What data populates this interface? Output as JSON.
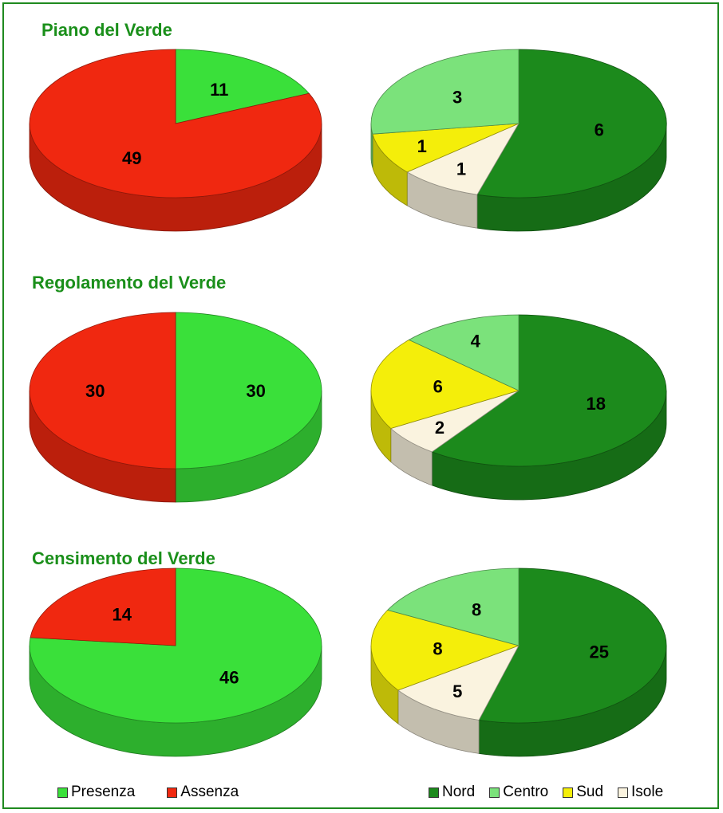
{
  "colors": {
    "presenza": "#3ae03a",
    "assenza": "#f02810",
    "nord": "#1c8a1c",
    "centro": "#7be27b",
    "sud": "#f4ee0a",
    "isole": "#faf3df",
    "title": "#1a8f1a"
  },
  "legend_left": [
    {
      "label": "Presenza",
      "color": "#3ae03a"
    },
    {
      "label": "Assenza",
      "color": "#f02810"
    }
  ],
  "legend_right": [
    {
      "label": "Nord",
      "color": "#1c8a1c"
    },
    {
      "label": "Centro",
      "color": "#7be27b"
    },
    {
      "label": "Sud",
      "color": "#f4ee0a"
    },
    {
      "label": "Isole",
      "color": "#faf3df"
    }
  ],
  "chart_data": [
    {
      "type": "pie",
      "title": "Piano del Verde",
      "slices": [
        {
          "label": "Presenza",
          "value": 11
        },
        {
          "label": "Assenza",
          "value": 49
        }
      ]
    },
    {
      "type": "pie",
      "title": "",
      "slices": [
        {
          "label": "Nord",
          "value": 6
        },
        {
          "label": "Centro",
          "value": 3
        },
        {
          "label": "Sud",
          "value": 1
        },
        {
          "label": "Isole",
          "value": 1
        }
      ]
    },
    {
      "type": "pie",
      "title": "Regolamento del Verde",
      "slices": [
        {
          "label": "Presenza",
          "value": 30
        },
        {
          "label": "Assenza",
          "value": 30
        }
      ]
    },
    {
      "type": "pie",
      "title": "",
      "slices": [
        {
          "label": "Nord",
          "value": 18
        },
        {
          "label": "Centro",
          "value": 4
        },
        {
          "label": "Sud",
          "value": 6
        },
        {
          "label": "Isole",
          "value": 2
        }
      ]
    },
    {
      "type": "pie",
      "title": "Censimento del Verde",
      "slices": [
        {
          "label": "Presenza",
          "value": 46
        },
        {
          "label": "Assenza",
          "value": 14
        }
      ]
    },
    {
      "type": "pie",
      "title": "",
      "slices": [
        {
          "label": "Nord",
          "value": 25
        },
        {
          "label": "Centro",
          "value": 8
        },
        {
          "label": "Sud",
          "value": 8
        },
        {
          "label": "Isole",
          "value": 5
        }
      ]
    }
  ]
}
